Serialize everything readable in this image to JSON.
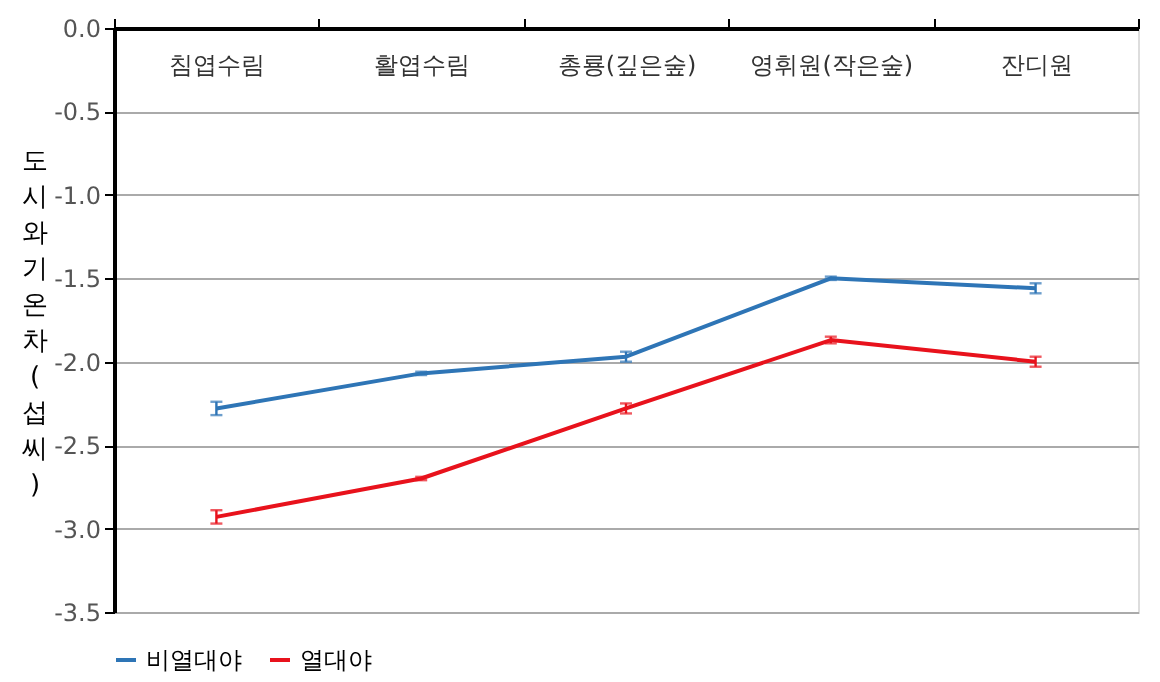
{
  "chart_data": {
    "type": "line",
    "ylabel": "도시와 기온차(섭씨)",
    "categories": [
      "침엽수림",
      "활엽수림",
      "총룡(깊은숲)",
      "영휘원(작은숲)",
      "잔디원"
    ],
    "series": [
      {
        "name": "비열대야",
        "color": "#2e75b6",
        "values": [
          -2.28,
          -2.07,
          -1.97,
          -1.5,
          -1.56
        ],
        "errors": [
          0.04,
          0.01,
          0.03,
          0.01,
          0.03
        ]
      },
      {
        "name": "열대야",
        "color": "#e8121c",
        "values": [
          -2.93,
          -2.7,
          -2.28,
          -1.87,
          -2.0
        ],
        "errors": [
          0.04,
          0.01,
          0.03,
          0.02,
          0.03
        ]
      }
    ],
    "ylim": [
      -3.5,
      0.0
    ],
    "yticks": [
      {
        "value": 0,
        "label": "0.0"
      },
      -0.5,
      {
        "value": -1,
        "label": "-1.0"
      },
      -1.5,
      {
        "value": -2,
        "label": "-2.0"
      },
      -2.5,
      {
        "value": -3,
        "label": "-3.0"
      },
      -3.5
    ],
    "grid": "y",
    "legend": "bottom",
    "marker": "none",
    "line_style": "solid"
  }
}
